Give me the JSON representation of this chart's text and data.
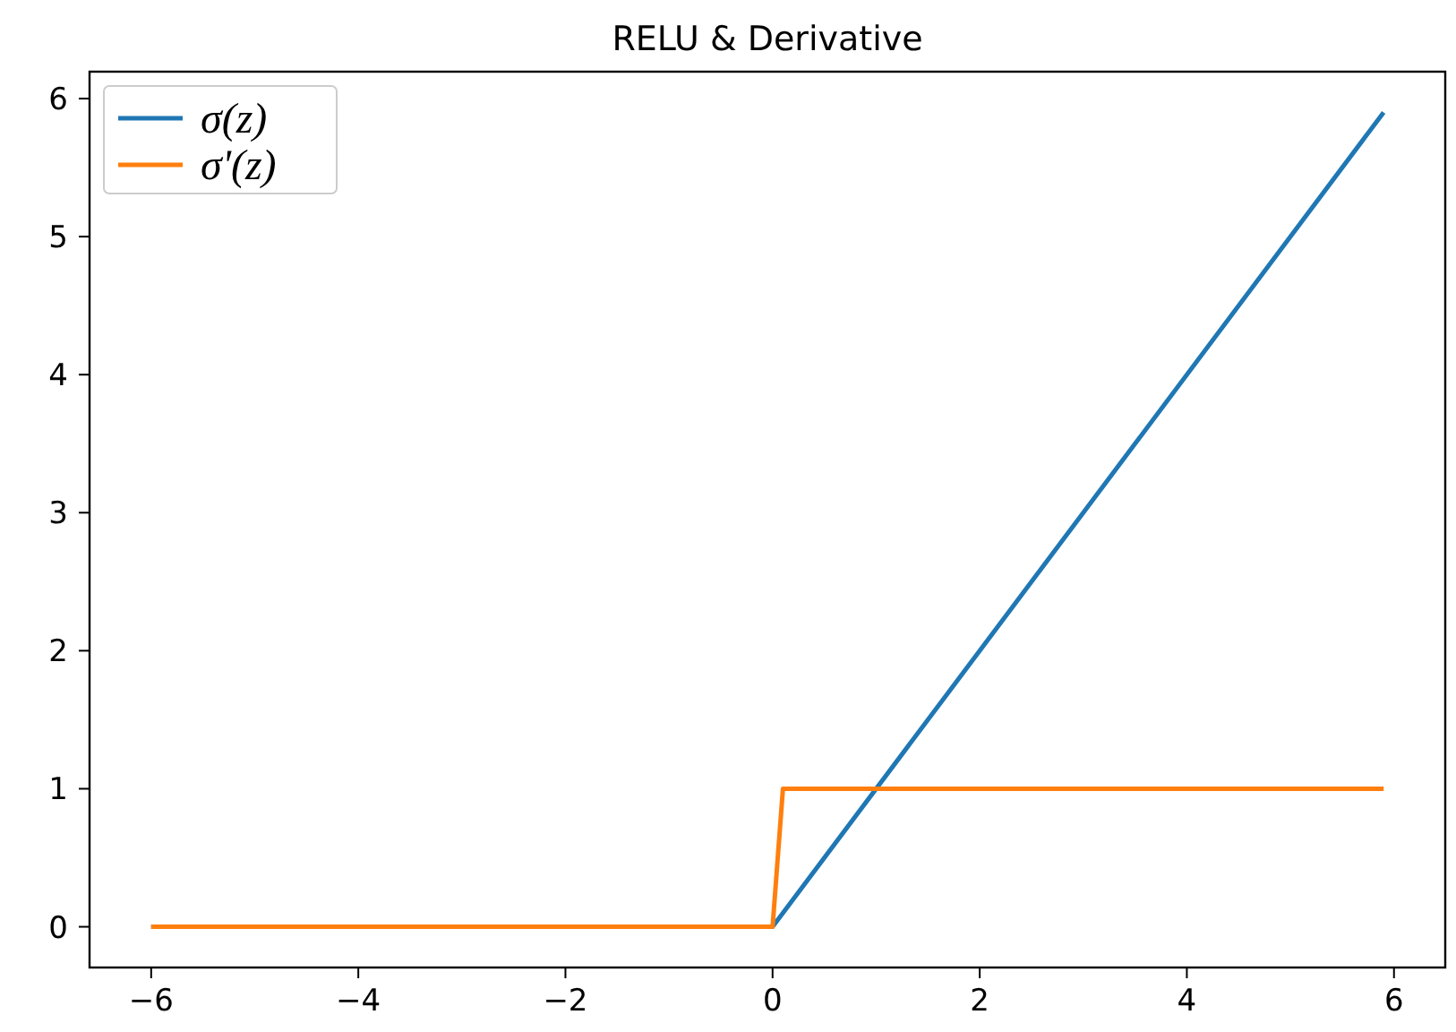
{
  "chart_data": {
    "type": "line",
    "title": "RELU & Derivative",
    "series": [
      {
        "name": "σ(z)",
        "color": "#1f77b4",
        "x": [
          -6,
          0,
          5.9
        ],
        "values": [
          0,
          0,
          5.9
        ]
      },
      {
        "name": "σ'(z)",
        "color": "#ff7f0e",
        "x": [
          -6,
          0,
          0.1,
          5.9
        ],
        "values": [
          0,
          0,
          1,
          1
        ]
      }
    ],
    "xlim": [
      -6.595,
      6.495
    ],
    "ylim": [
      -0.295,
      6.195
    ],
    "xticks": [
      {
        "value": -6,
        "label": "−6"
      },
      {
        "value": -4,
        "label": "−4"
      },
      {
        "value": -2,
        "label": "−2"
      },
      0,
      2,
      4,
      6
    ],
    "yticks": [
      0,
      1,
      2,
      3,
      4,
      5,
      6
    ],
    "grid": false,
    "legend": "top left",
    "line_style": "solid"
  }
}
